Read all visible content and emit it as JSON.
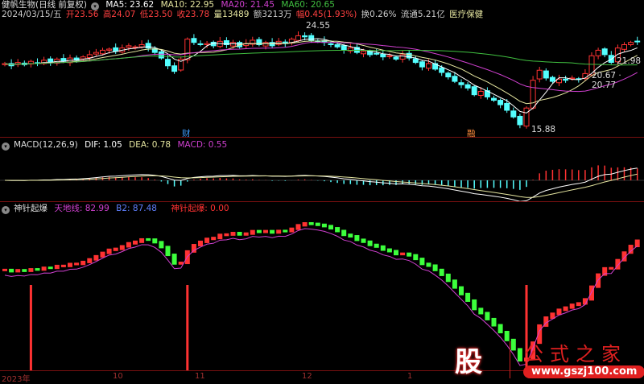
{
  "header": {
    "name": "健帆生物(日线 前复权)",
    "ma5": "MA5: 23.62",
    "ma10": "MA10: 22.95",
    "ma20": "MA20: 21.45",
    "ma60": "MA60: 20.65",
    "date": "2024/03/15/五",
    "open": "开23.56",
    "high": "高24.07",
    "low": "低23.50",
    "close": "收23.78",
    "vol": "量13489",
    "amount": "额3213万",
    "change": "幅0.45(1.93%)",
    "turnover": "换0.26%",
    "float": "流通5.21亿",
    "sector": "医疗保健"
  },
  "annotations": {
    "high": "24.55",
    "low": "15.88",
    "right1": "21.98",
    "right2": "20.67 · 20.77",
    "cai": "财",
    "rong": "融"
  },
  "macd_header": {
    "title": "MACD(12,26,9)",
    "dif": "DIF: 1.05",
    "dea": "DEA: 0.78",
    "macd": "MACD: 0.55"
  },
  "ind_header": {
    "title": "神针起爆",
    "line1": "天地线: 82.99",
    "b2": "B2: 87.48",
    "signal": "神针起爆: 0.00"
  },
  "xaxis": [
    "2023年",
    "10",
    "11",
    "12",
    "1"
  ],
  "watermark": {
    "logo": "股",
    "site": "公式之家",
    "url": "www.gszj100.com"
  },
  "colors": {
    "up": "#ff3232",
    "down": "#54ffff",
    "ma5": "#ffffff",
    "ma10": "#e6e6a0",
    "ma20": "#d040d0",
    "ma60": "#40c040",
    "green": "#3cff3c"
  },
  "chart_data": {
    "type": "candlestick",
    "ylim": [
      15.5,
      25.2
    ],
    "close": [
      21.8,
      21.6,
      21.9,
      21.7,
      22.0,
      21.8,
      22.1,
      21.9,
      22.2,
      22.0,
      22.3,
      22.1,
      22.4,
      22.6,
      22.8,
      23.0,
      23.1,
      22.9,
      23.2,
      23.4,
      23.3,
      23.5,
      23.2,
      22.8,
      22.3,
      21.6,
      21.1,
      22.2,
      24.0,
      23.7,
      23.5,
      23.6,
      23.4,
      23.8,
      23.5,
      23.7,
      23.3,
      23.6,
      23.9,
      23.5,
      23.7,
      23.4,
      23.8,
      23.6,
      24.0,
      24.3,
      24.2,
      23.9,
      23.8,
      23.7,
      23.5,
      23.3,
      23.0,
      23.2,
      22.8,
      22.9,
      22.6,
      22.7,
      22.4,
      22.5,
      22.2,
      22.6,
      22.3,
      21.9,
      21.5,
      21.8,
      21.3,
      21.0,
      20.6,
      20.2,
      19.9,
      19.6,
      19.0,
      19.3,
      18.8,
      18.5,
      18.1,
      17.6,
      17.0,
      16.3,
      17.8,
      20.3,
      21.2,
      20.5,
      20.2,
      20.4,
      20.3,
      20.5,
      20.4,
      20.9,
      22.5,
      23.0,
      22.6,
      21.9,
      23.2,
      23.5,
      23.7,
      23.78
    ]
  }
}
